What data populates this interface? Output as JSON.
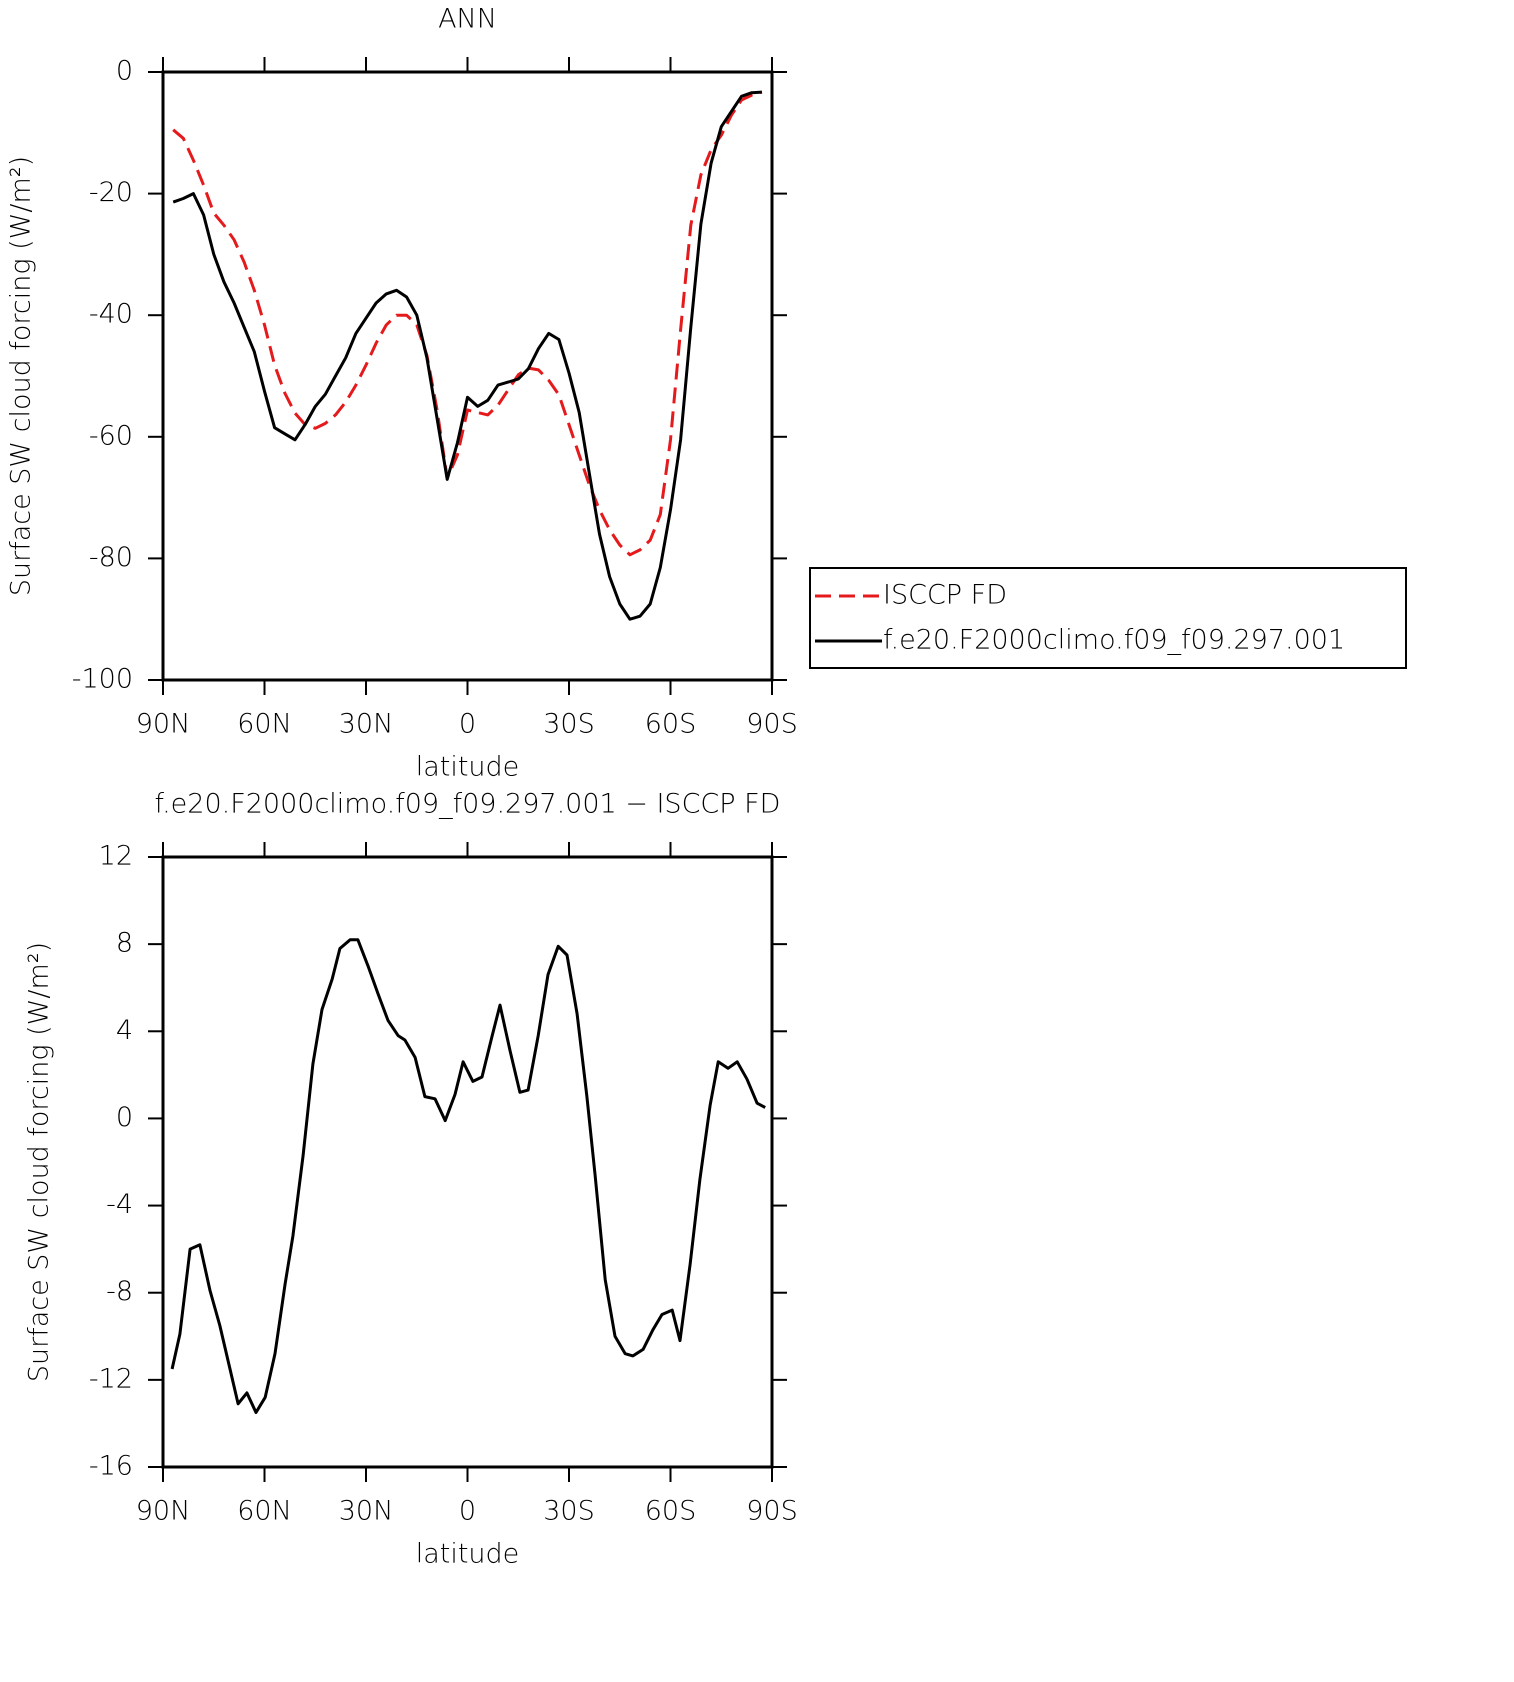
{
  "chart_data": [
    {
      "type": "line",
      "title": "ANN",
      "ylabel": "Surface SW cloud forcing (W/m²)",
      "xlabel": "latitude",
      "xlim": [
        90,
        -90
      ],
      "ylim": [
        -100,
        0
      ],
      "xticks": [
        {
          "value": 90,
          "label": "90N"
        },
        {
          "value": 60,
          "label": "60N"
        },
        {
          "value": 30,
          "label": "30N"
        },
        {
          "value": 0,
          "label": "0"
        },
        {
          "value": -30,
          "label": "30S"
        },
        {
          "value": -60,
          "label": "60S"
        },
        {
          "value": -90,
          "label": "90S"
        }
      ],
      "yticks": [
        0,
        -20,
        -40,
        -60,
        -80,
        -100
      ],
      "legend": "right",
      "x": [
        87,
        84,
        81,
        78,
        75,
        72,
        69,
        66,
        63,
        60,
        57,
        54,
        51,
        48,
        45,
        42,
        39,
        36,
        33,
        30,
        27,
        24,
        21,
        18,
        15,
        12,
        9,
        6,
        3,
        0,
        -3,
        -6,
        -9,
        -12,
        -15,
        -18,
        -21,
        -24,
        -27,
        -30,
        -33,
        -36,
        -39,
        -42,
        -45,
        -48,
        -51,
        -54,
        -57,
        -60,
        -63,
        -66,
        -69,
        -72,
        -75,
        -78,
        -81,
        -84,
        -87
      ],
      "series": [
        {
          "name": "ISCCP FD",
          "color": "#e41a1c",
          "dashed": true,
          "values": [
            -9.5,
            -10.9,
            -14.5,
            -18.6,
            -23.2,
            -25.2,
            -27.6,
            -31.3,
            -35.9,
            -41.6,
            -48.2,
            -52.8,
            -56.1,
            -58,
            -58.6,
            -57.8,
            -56.4,
            -54.3,
            -51.5,
            -48.2,
            -44.6,
            -41.6,
            -40,
            -40,
            -41.6,
            -46.6,
            -55.6,
            -66.8,
            -63,
            -55.6,
            -56,
            -56.4,
            -54.8,
            -52.3,
            -49.8,
            -48.7,
            -49,
            -50.7,
            -53.1,
            -58,
            -63,
            -67.9,
            -72,
            -75.3,
            -77.8,
            -79.4,
            -78.6,
            -77,
            -72.8,
            -60.5,
            -42.4,
            -25.2,
            -16.9,
            -12.8,
            -10.4,
            -7.1,
            -4.6,
            -3.8,
            -3.3
          ]
        },
        {
          "name": "f.e20.F2000climo.f09_f09.297.001",
          "color": "#000000",
          "dashed": false,
          "values": [
            -21.4,
            -20.8,
            -20,
            -23.5,
            -30,
            -34.5,
            -38,
            -42,
            -46,
            -52.5,
            -58.5,
            -59.5,
            -60.5,
            -58,
            -55,
            -53,
            -50,
            -47,
            -43,
            -40.5,
            -38,
            -36.5,
            -35.9,
            -37,
            -40,
            -47,
            -57,
            -67,
            -61,
            -53.5,
            -55,
            -54,
            -51.5,
            -51,
            -50.5,
            -48.8,
            -45.5,
            -43,
            -44,
            -49.5,
            -56,
            -66,
            -76,
            -83,
            -87.5,
            -90,
            -89.5,
            -87.5,
            -81.5,
            -72,
            -60.5,
            -42,
            -25,
            -15,
            -9,
            -6.5,
            -4,
            -3.4,
            -3.3
          ]
        }
      ]
    },
    {
      "type": "line",
      "title": "f.e20.F2000climo.f09_f09.297.001 − ISCCP FD",
      "ylabel": "Surface SW cloud forcing (W/m²)",
      "xlabel": "latitude",
      "xlim": [
        90,
        -90
      ],
      "ylim": [
        -16,
        12
      ],
      "xticks": [
        {
          "value": 90,
          "label": "90N"
        },
        {
          "value": 60,
          "label": "60N"
        },
        {
          "value": 30,
          "label": "30N"
        },
        {
          "value": 0,
          "label": "0"
        },
        {
          "value": -30,
          "label": "30S"
        },
        {
          "value": -60,
          "label": "60S"
        },
        {
          "value": -90,
          "label": "90S"
        }
      ],
      "yticks": [
        12,
        8,
        4,
        0,
        -4,
        -8,
        -12,
        -16
      ],
      "x": [
        87.3,
        85.0,
        82.0,
        79.1,
        76.1,
        73.2,
        70.2,
        67.8,
        65.2,
        62.5,
        59.8,
        56.9,
        53.9,
        51.6,
        48.6,
        45.7,
        43.0,
        40.0,
        37.7,
        34.7,
        32.4,
        29.4,
        26.4,
        23.5,
        20.5,
        18.5,
        15.5,
        12.6,
        9.6,
        6.6,
        3.7,
        1.3,
        -1.6,
        -4.3,
        -7.3,
        -9.6,
        -12.6,
        -15.5,
        -17.9,
        -20.9,
        -23.8,
        -26.8,
        -29.4,
        -32.4,
        -35.3,
        -37.7,
        -40.7,
        -43.6,
        -46.6,
        -48.9,
        -51.9,
        -54.8,
        -57.5,
        -60.5,
        -62.8,
        -65.8,
        -68.7,
        -71.7,
        -74.1,
        -77.0,
        -79.7,
        -82.6,
        -85.6,
        -88.0
      ],
      "series": [
        {
          "color": "#000000",
          "dashed": false,
          "values": [
            -11.5,
            -9.9,
            -6.0,
            -5.8,
            -7.9,
            -9.5,
            -11.5,
            -13.1,
            -12.6,
            -13.5,
            -12.8,
            -10.8,
            -7.6,
            -5.4,
            -1.7,
            2.5,
            5.0,
            6.4,
            7.8,
            8.2,
            8.2,
            7.0,
            5.7,
            4.5,
            3.8,
            3.6,
            2.8,
            1.0,
            0.9,
            -0.1,
            1.1,
            2.6,
            1.7,
            1.9,
            3.8,
            5.2,
            3.1,
            1.2,
            1.3,
            3.8,
            6.6,
            7.9,
            7.5,
            4.8,
            1.0,
            -2.6,
            -7.4,
            -10.0,
            -10.8,
            -10.9,
            -10.6,
            -9.7,
            -9.0,
            -8.8,
            -10.2,
            -6.7,
            -2.8,
            0.6,
            2.6,
            2.3,
            2.6,
            1.8,
            0.7,
            0.5
          ]
        }
      ]
    }
  ]
}
